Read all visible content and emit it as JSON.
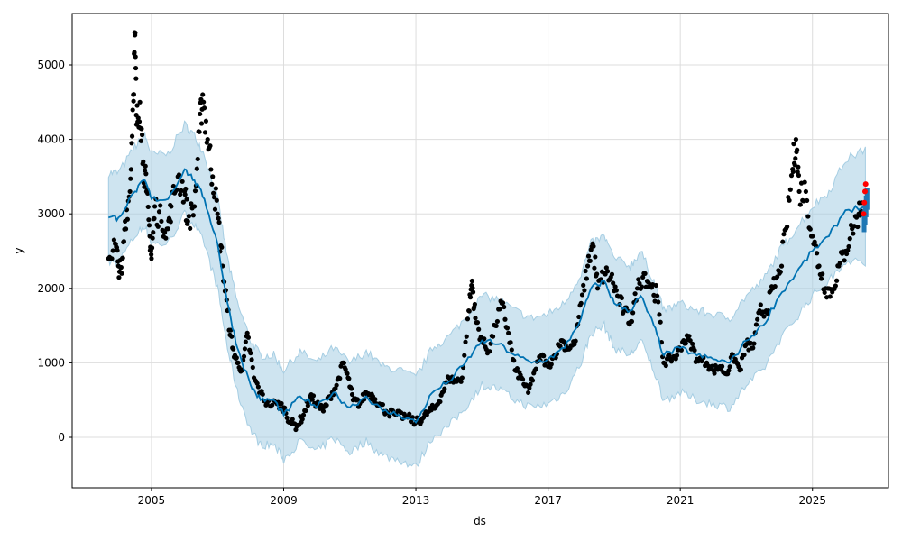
{
  "chart_data": {
    "type": "line",
    "title": "",
    "xlabel": "ds",
    "ylabel": "y",
    "xlim": [
      2002.6,
      2027.3
    ],
    "ylim": [
      -678,
      5690
    ],
    "grid": true,
    "x_ticks": [
      {
        "v": 2005,
        "label": "2005"
      },
      {
        "v": 2009,
        "label": "2009"
      },
      {
        "v": 2013,
        "label": "2013"
      },
      {
        "v": 2017,
        "label": "2017"
      },
      {
        "v": 2021,
        "label": "2021"
      },
      {
        "v": 2025,
        "label": "2025"
      }
    ],
    "y_ticks": [
      {
        "v": 0,
        "label": "0"
      },
      {
        "v": 1000,
        "label": "1000"
      },
      {
        "v": 2000,
        "label": "2000"
      },
      {
        "v": 3000,
        "label": "3000"
      },
      {
        "v": 4000,
        "label": "4000"
      },
      {
        "v": 5000,
        "label": "5000"
      }
    ],
    "colors": {
      "forecast": "#0072B2",
      "band": "#a6cee3",
      "observed": "#000000",
      "highlight": "#ff0000",
      "forecast_points": "#1f77b4"
    },
    "forecast": [
      [
        2003.7,
        2950
      ],
      [
        2004.0,
        2950
      ],
      [
        2004.5,
        3300
      ],
      [
        2004.8,
        3450
      ],
      [
        2005.0,
        3200
      ],
      [
        2005.5,
        3200
      ],
      [
        2006.0,
        3600
      ],
      [
        2006.3,
        3450
      ],
      [
        2006.6,
        3200
      ],
      [
        2007.0,
        2600
      ],
      [
        2007.3,
        1800
      ],
      [
        2007.6,
        1200
      ],
      [
        2008.0,
        700
      ],
      [
        2008.3,
        500
      ],
      [
        2008.7,
        500
      ],
      [
        2009.0,
        300
      ],
      [
        2009.5,
        550
      ],
      [
        2010.0,
        400
      ],
      [
        2010.5,
        600
      ],
      [
        2011.0,
        400
      ],
      [
        2011.5,
        550
      ],
      [
        2012.0,
        350
      ],
      [
        2012.5,
        300
      ],
      [
        2013.0,
        200
      ],
      [
        2013.5,
        600
      ],
      [
        2014.0,
        750
      ],
      [
        2014.5,
        1000
      ],
      [
        2015.0,
        1300
      ],
      [
        2015.5,
        1250
      ],
      [
        2016.0,
        1100
      ],
      [
        2016.5,
        1000
      ],
      [
        2017.0,
        1050
      ],
      [
        2017.5,
        1200
      ],
      [
        2018.0,
        1600
      ],
      [
        2018.3,
        2000
      ],
      [
        2018.7,
        2100
      ],
      [
        2019.0,
        1800
      ],
      [
        2019.5,
        1700
      ],
      [
        2019.8,
        1900
      ],
      [
        2020.2,
        1500
      ],
      [
        2020.5,
        1100
      ],
      [
        2021.0,
        1200
      ],
      [
        2021.5,
        1100
      ],
      [
        2022.0,
        1050
      ],
      [
        2022.5,
        1000
      ],
      [
        2023.0,
        1300
      ],
      [
        2023.5,
        1500
      ],
      [
        2024.0,
        1900
      ],
      [
        2024.5,
        2200
      ],
      [
        2025.0,
        2500
      ],
      [
        2025.5,
        2700
      ],
      [
        2026.0,
        3050
      ],
      [
        2026.6,
        3100
      ]
    ],
    "band_halfwidth": 600,
    "observed": [
      [
        2003.7,
        2400
      ],
      [
        2003.9,
        2600
      ],
      [
        2004.0,
        2300
      ],
      [
        2004.1,
        2200
      ],
      [
        2004.2,
        2900
      ],
      [
        2004.35,
        3300
      ],
      [
        2004.45,
        4600
      ],
      [
        2004.5,
        5400
      ],
      [
        2004.55,
        4200
      ],
      [
        2004.65,
        4500
      ],
      [
        2004.75,
        3700
      ],
      [
        2004.85,
        3300
      ],
      [
        2004.95,
        2700
      ],
      [
        2005.0,
        2400
      ],
      [
        2005.1,
        3100
      ],
      [
        2005.3,
        2900
      ],
      [
        2005.5,
        2800
      ],
      [
        2005.6,
        3100
      ],
      [
        2005.8,
        3500
      ],
      [
        2006.0,
        3300
      ],
      [
        2006.1,
        2900
      ],
      [
        2006.3,
        3100
      ],
      [
        2006.45,
        4100
      ],
      [
        2006.55,
        4600
      ],
      [
        2006.7,
        4000
      ],
      [
        2006.85,
        3500
      ],
      [
        2007.0,
        3000
      ],
      [
        2007.15,
        2300
      ],
      [
        2007.3,
        1700
      ],
      [
        2007.45,
        1200
      ],
      [
        2007.6,
        1000
      ],
      [
        2007.75,
        900
      ],
      [
        2007.9,
        1400
      ],
      [
        2008.1,
        800
      ],
      [
        2008.3,
        600
      ],
      [
        2008.5,
        450
      ],
      [
        2008.8,
        450
      ],
      [
        2009.0,
        400
      ],
      [
        2009.2,
        200
      ],
      [
        2009.4,
        150
      ],
      [
        2009.6,
        300
      ],
      [
        2009.8,
        550
      ],
      [
        2010.0,
        450
      ],
      [
        2010.2,
        350
      ],
      [
        2010.4,
        550
      ],
      [
        2010.6,
        700
      ],
      [
        2010.8,
        1000
      ],
      [
        2010.95,
        800
      ],
      [
        2011.1,
        500
      ],
      [
        2011.3,
        450
      ],
      [
        2011.5,
        600
      ],
      [
        2011.7,
        550
      ],
      [
        2011.9,
        450
      ],
      [
        2012.1,
        350
      ],
      [
        2012.4,
        300
      ],
      [
        2012.7,
        280
      ],
      [
        2013.0,
        200
      ],
      [
        2013.2,
        250
      ],
      [
        2013.4,
        350
      ],
      [
        2013.6,
        400
      ],
      [
        2013.8,
        600
      ],
      [
        2014.0,
        800
      ],
      [
        2014.2,
        750
      ],
      [
        2014.4,
        800
      ],
      [
        2014.6,
        1700
      ],
      [
        2014.7,
        2100
      ],
      [
        2014.8,
        1600
      ],
      [
        2015.0,
        1300
      ],
      [
        2015.2,
        1150
      ],
      [
        2015.4,
        1500
      ],
      [
        2015.6,
        1800
      ],
      [
        2015.8,
        1400
      ],
      [
        2016.0,
        900
      ],
      [
        2016.2,
        800
      ],
      [
        2016.4,
        600
      ],
      [
        2016.6,
        900
      ],
      [
        2016.8,
        1100
      ],
      [
        2017.0,
        950
      ],
      [
        2017.2,
        1100
      ],
      [
        2017.4,
        1300
      ],
      [
        2017.6,
        1200
      ],
      [
        2017.8,
        1250
      ],
      [
        2018.0,
        1800
      ],
      [
        2018.2,
        2300
      ],
      [
        2018.35,
        2600
      ],
      [
        2018.5,
        2000
      ],
      [
        2018.7,
        2200
      ],
      [
        2018.9,
        2150
      ],
      [
        2019.1,
        1900
      ],
      [
        2019.3,
        1700
      ],
      [
        2019.5,
        1550
      ],
      [
        2019.7,
        2000
      ],
      [
        2019.9,
        2200
      ],
      [
        2020.1,
        2050
      ],
      [
        2020.3,
        1900
      ],
      [
        2020.5,
        1000
      ],
      [
        2020.7,
        1050
      ],
      [
        2020.9,
        1100
      ],
      [
        2021.1,
        1300
      ],
      [
        2021.3,
        1300
      ],
      [
        2021.5,
        1050
      ],
      [
        2021.8,
        1000
      ],
      [
        2022.0,
        900
      ],
      [
        2022.2,
        950
      ],
      [
        2022.4,
        850
      ],
      [
        2022.6,
        1100
      ],
      [
        2022.8,
        900
      ],
      [
        2023.0,
        1250
      ],
      [
        2023.2,
        1200
      ],
      [
        2023.4,
        1700
      ],
      [
        2023.6,
        1700
      ],
      [
        2023.8,
        2000
      ],
      [
        2024.0,
        2200
      ],
      [
        2024.2,
        2800
      ],
      [
        2024.4,
        3600
      ],
      [
        2024.5,
        4000
      ],
      [
        2024.6,
        3300
      ],
      [
        2024.8,
        3300
      ],
      [
        2025.0,
        2700
      ],
      [
        2025.2,
        2300
      ],
      [
        2025.4,
        2000
      ],
      [
        2025.6,
        1950
      ],
      [
        2025.8,
        2300
      ],
      [
        2026.0,
        2500
      ],
      [
        2026.2,
        2800
      ],
      [
        2026.4,
        3000
      ],
      [
        2026.5,
        3150
      ]
    ],
    "highlighted": [
      [
        2026.55,
        3000
      ],
      [
        2026.57,
        3150
      ],
      [
        2026.59,
        3300
      ],
      [
        2026.61,
        3400
      ]
    ],
    "forecast_points": [
      [
        2026.55,
        2900
      ],
      [
        2026.58,
        3000
      ],
      [
        2026.61,
        3100
      ],
      [
        2026.64,
        3200
      ]
    ]
  }
}
